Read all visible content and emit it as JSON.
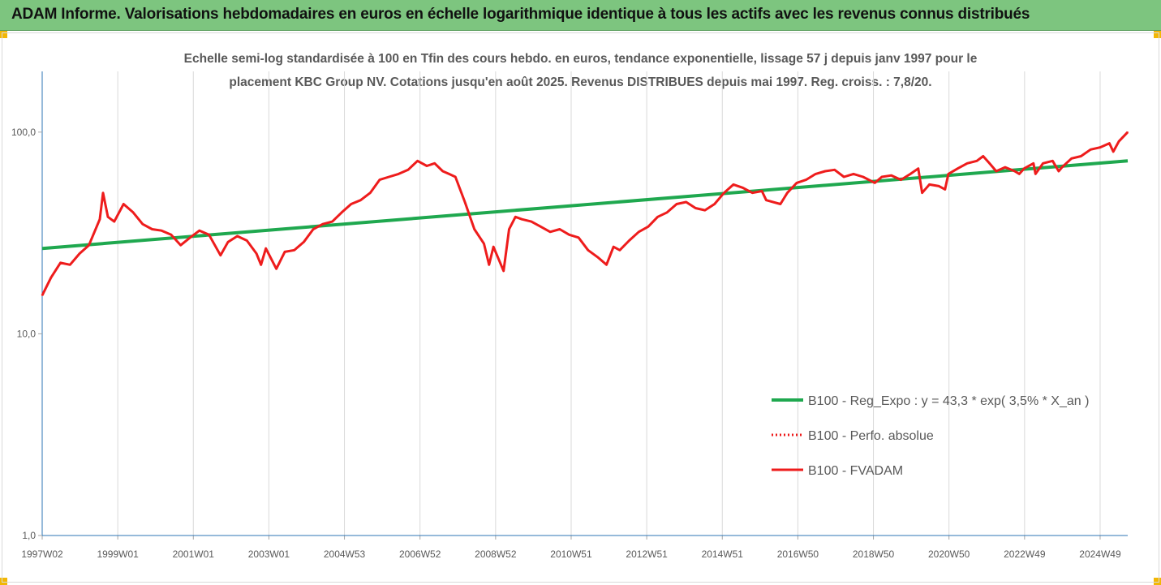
{
  "header": {
    "title": "ADAM Informe. Valorisations hebdomadaires en euros en échelle logarithmique identique à tous les actifs avec les revenus connus distribués"
  },
  "colors": {
    "header_bg": "#7dc57f",
    "corner": "#f2b705",
    "regression": "#1fa84f",
    "price": "#ee1c1c",
    "axis": "#2e75b6",
    "grid": "#d9d9d9"
  },
  "chart_data": {
    "type": "line",
    "subtitle_line1": "Echelle semi-log standardisée à 100 en Tfin des cours hebdo. en euros, tendance exponentielle, lissage 57 j depuis janv 1997 pour le",
    "subtitle_line2": "placement KBC Group NV. Cotations jusqu'en août 2025. Revenus DISTRIBUES depuis mai 1997. Reg. croiss. : 7,8/20.",
    "y_scale": "log",
    "ylim": [
      1,
      200
    ],
    "y_ticks": [
      1,
      10,
      100
    ],
    "y_tick_labels": [
      "1,0",
      "10,0",
      "100,0"
    ],
    "x_range": [
      "1997-01-06",
      "2025-08-25"
    ],
    "x_tick_labels": [
      "1997W02",
      "1999W01",
      "2001W01",
      "2003W01",
      "2004W53",
      "2006W52",
      "2008W52",
      "2010W51",
      "2012W51",
      "2014W51",
      "2016W50",
      "2018W50",
      "2020W50",
      "2022W49",
      "2024W49"
    ],
    "x_tick_dates": [
      "1997-01-06",
      "1999-01-04",
      "2001-01-01",
      "2002-12-30",
      "2004-12-27",
      "2006-12-25",
      "2008-12-22",
      "2010-12-20",
      "2012-12-17",
      "2014-12-15",
      "2016-12-12",
      "2018-12-10",
      "2020-12-07",
      "2022-12-05",
      "2024-12-02"
    ],
    "grid": "vertical",
    "legend_position": "right-middle",
    "series": [
      {
        "name": "B100 - Reg_Expo : y = 43,3 * exp( 3,5% *  X_an )",
        "style": "solid-green",
        "x": [
          "1997-01-06",
          "2025-08-25"
        ],
        "y": [
          26.5,
          72.0
        ]
      },
      {
        "name": "B100 - Perfo. absolue",
        "style": "dotted-red",
        "x": [],
        "y": []
      },
      {
        "name": "B100 - FVADAM",
        "style": "solid-red",
        "x": [
          "1997-01-06",
          "1997-04-01",
          "1997-07-01",
          "1997-10-01",
          "1998-01-01",
          "1998-04-01",
          "1998-07-15",
          "1998-08-15",
          "1998-10-01",
          "1998-12-01",
          "1999-03-01",
          "1999-06-01",
          "1999-09-01",
          "1999-12-01",
          "2000-03-01",
          "2000-06-01",
          "2000-09-01",
          "2000-12-01",
          "2001-03-01",
          "2001-06-01",
          "2001-09-20",
          "2001-12-01",
          "2002-03-01",
          "2002-06-01",
          "2002-09-01",
          "2002-10-15",
          "2002-12-01",
          "2003-03-12",
          "2003-06-01",
          "2003-09-01",
          "2003-12-01",
          "2004-03-01",
          "2004-06-01",
          "2004-09-01",
          "2004-12-01",
          "2005-03-01",
          "2005-06-01",
          "2005-09-01",
          "2005-12-01",
          "2006-03-01",
          "2006-06-01",
          "2006-09-01",
          "2006-12-01",
          "2007-03-01",
          "2007-05-15",
          "2007-08-01",
          "2007-10-01",
          "2007-12-01",
          "2008-03-01",
          "2008-06-01",
          "2008-09-01",
          "2008-10-20",
          "2008-12-01",
          "2009-03-09",
          "2009-05-01",
          "2009-07-01",
          "2009-09-01",
          "2009-12-01",
          "2010-03-01",
          "2010-06-01",
          "2010-09-01",
          "2010-12-01",
          "2011-03-01",
          "2011-06-01",
          "2011-09-01",
          "2011-11-25",
          "2012-02-01",
          "2012-04-01",
          "2012-07-01",
          "2012-10-01",
          "2013-01-01",
          "2013-04-01",
          "2013-07-01",
          "2013-10-01",
          "2014-01-01",
          "2014-04-01",
          "2014-07-01",
          "2014-10-01",
          "2015-01-01",
          "2015-04-01",
          "2015-07-01",
          "2015-10-01",
          "2016-01-01",
          "2016-02-11",
          "2016-06-27",
          "2016-09-01",
          "2016-12-01",
          "2017-03-01",
          "2017-06-01",
          "2017-09-01",
          "2017-12-01",
          "2018-03-01",
          "2018-06-01",
          "2018-09-01",
          "2018-12-24",
          "2019-03-01",
          "2019-06-01",
          "2019-09-01",
          "2019-12-01",
          "2020-02-15",
          "2020-03-23",
          "2020-06-01",
          "2020-09-01",
          "2020-10-30",
          "2020-12-01",
          "2021-03-01",
          "2021-06-01",
          "2021-09-01",
          "2021-11-01",
          "2022-01-01",
          "2022-03-07",
          "2022-06-01",
          "2022-09-01",
          "2022-10-15",
          "2022-12-01",
          "2023-03-01",
          "2023-03-20",
          "2023-06-01",
          "2023-09-01",
          "2023-10-30",
          "2023-12-01",
          "2024-03-01",
          "2024-06-01",
          "2024-09-01",
          "2024-12-01",
          "2025-03-01",
          "2025-04-08",
          "2025-06-01",
          "2025-08-25"
        ],
        "y": [
          15.5,
          19.0,
          22.5,
          22.0,
          25.0,
          27.5,
          37.0,
          50.0,
          38.0,
          36.0,
          44.0,
          40.0,
          35.0,
          33.0,
          32.5,
          31.0,
          27.5,
          30.0,
          32.5,
          31.0,
          24.5,
          28.5,
          30.5,
          29.0,
          25.0,
          22.0,
          26.5,
          21.0,
          25.5,
          26.0,
          28.5,
          33.0,
          35.0,
          36.0,
          40.0,
          44.0,
          46.0,
          50.0,
          58.0,
          60.0,
          62.0,
          65.0,
          72.0,
          68.0,
          70.0,
          64.0,
          62.0,
          60.0,
          45.0,
          33.0,
          28.0,
          22.0,
          27.0,
          20.5,
          33.0,
          38.0,
          37.0,
          36.0,
          34.0,
          32.0,
          33.0,
          31.0,
          30.0,
          26.0,
          24.0,
          22.0,
          27.0,
          26.0,
          29.0,
          32.0,
          34.0,
          38.0,
          40.0,
          44.0,
          45.0,
          42.0,
          41.0,
          44.0,
          50.0,
          55.0,
          53.0,
          50.0,
          51.0,
          46.0,
          44.0,
          50.0,
          56.0,
          58.0,
          62.0,
          64.0,
          65.0,
          60.0,
          62.0,
          60.0,
          56.0,
          60.0,
          61.0,
          58.0,
          62.0,
          66.0,
          50.0,
          55.0,
          54.0,
          52.0,
          62.0,
          66.0,
          70.0,
          72.0,
          76.0,
          70.0,
          64.0,
          67.0,
          64.0,
          62.0,
          66.0,
          70.0,
          62.0,
          70.0,
          72.0,
          64.0,
          67.0,
          74.0,
          76.0,
          82.0,
          84.0,
          88.0,
          80.0,
          90.0,
          100.0
        ]
      }
    ]
  }
}
